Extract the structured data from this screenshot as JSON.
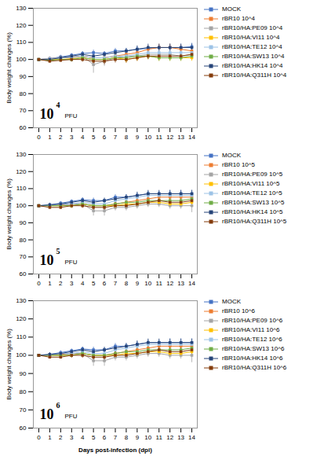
{
  "chart_data": [
    {
      "type": "line",
      "marker": "square",
      "legend": "right",
      "grid": false,
      "x": [
        0,
        1,
        2,
        3,
        4,
        5,
        6,
        7,
        8,
        9,
        10,
        11,
        12,
        13,
        14
      ],
      "xlim": [
        -0.5,
        14.5
      ],
      "xticks": [
        0,
        1,
        2,
        3,
        4,
        5,
        6,
        7,
        8,
        9,
        10,
        11,
        12,
        13,
        14
      ],
      "ylim": [
        60,
        130
      ],
      "yticks": [
        60,
        70,
        80,
        90,
        100,
        110,
        120,
        130
      ],
      "ylabel": "Body weight changes (%)",
      "annotation": {
        "base": "10",
        "exponent": "4",
        "unit": "PFU"
      },
      "series": [
        {
          "name": "MOCK",
          "color": "#4472C4",
          "values": [
            100,
            100.5,
            101.5,
            102.5,
            103.5,
            104,
            103.5,
            105,
            105,
            106,
            106.5,
            107,
            107,
            107,
            107.5
          ],
          "errors": [
            0,
            1,
            1,
            1,
            1,
            1.5,
            1,
            1.5,
            1.5,
            1.5,
            1.5,
            1.5,
            2,
            2,
            2
          ]
        },
        {
          "name": "rBR10 10^4",
          "color": "#ED7D31",
          "values": [
            100,
            100.5,
            101,
            101.5,
            102,
            101,
            101,
            102,
            103,
            104,
            106,
            107,
            107,
            106,
            105
          ],
          "errors": [
            0,
            1,
            1,
            1,
            1,
            1.5,
            2,
            2,
            2,
            2,
            2,
            2,
            2,
            2.5,
            2.5
          ]
        },
        {
          "name": "rBR10/HA:PE09 10^4",
          "color": "#A5A5A5",
          "values": [
            100,
            100,
            101,
            101,
            102,
            97,
            99,
            101,
            102,
            102,
            103,
            103,
            103,
            102,
            103
          ],
          "errors": [
            0,
            1,
            1,
            1.5,
            1.5,
            5,
            3,
            2,
            2,
            2,
            2,
            2,
            2,
            2,
            2
          ]
        },
        {
          "name": "rBR10/HA:VI11 10^4",
          "color": "#FFC000",
          "values": [
            100,
            100,
            100,
            100.5,
            101,
            100,
            100,
            101,
            100,
            101,
            102,
            101,
            101,
            101,
            101
          ],
          "errors": [
            0,
            0.5,
            0.5,
            1,
            1,
            1.5,
            1.5,
            2,
            2,
            2,
            2,
            2,
            2,
            2,
            2
          ]
        },
        {
          "name": "rBR10/HA:TE12 10^4",
          "color": "#9DC3E6",
          "values": [
            100,
            100.5,
            101,
            101.5,
            102,
            101,
            101,
            102,
            102,
            103,
            104,
            104,
            104,
            104,
            104
          ],
          "errors": [
            0,
            1,
            1,
            1,
            1,
            1.5,
            1.5,
            1.5,
            1.5,
            1.5,
            2,
            2,
            2,
            2,
            2
          ]
        },
        {
          "name": "rBR10/HA:SW13 10^4",
          "color": "#70AD47",
          "values": [
            100,
            99.5,
            100,
            100,
            101,
            100,
            100,
            101,
            101,
            102,
            102,
            101,
            101,
            101,
            102
          ],
          "errors": [
            0,
            1,
            1,
            1,
            1,
            1.5,
            1.5,
            1.5,
            1.5,
            2,
            2,
            2,
            2,
            2,
            2
          ]
        },
        {
          "name": "rBR10/HA:HK14 10^4",
          "color": "#264478",
          "values": [
            100,
            100,
            101,
            102,
            103,
            102,
            103,
            104,
            105,
            106,
            107,
            107,
            107,
            107,
            107
          ],
          "errors": [
            0,
            1,
            1,
            1,
            1.5,
            1.5,
            1.5,
            1.5,
            1.5,
            2,
            2,
            2,
            2,
            2,
            2
          ]
        },
        {
          "name": "rBR10/HA:Q311H 10^4",
          "color": "#843C0C",
          "values": [
            100,
            99,
            99.5,
            100,
            100,
            99,
            99,
            100,
            100,
            101,
            102,
            102,
            102,
            102,
            103
          ],
          "errors": [
            0,
            1,
            1,
            1.5,
            1.5,
            2,
            2,
            2,
            2,
            2,
            2,
            2,
            2,
            2,
            2
          ]
        }
      ]
    },
    {
      "type": "line",
      "marker": "square",
      "legend": "right",
      "grid": false,
      "x": [
        0,
        1,
        2,
        3,
        4,
        5,
        6,
        7,
        8,
        9,
        10,
        11,
        12,
        13,
        14
      ],
      "xlim": [
        -0.5,
        14.5
      ],
      "xticks": [
        0,
        1,
        2,
        3,
        4,
        5,
        6,
        7,
        8,
        9,
        10,
        11,
        12,
        13,
        14
      ],
      "ylim": [
        60,
        130
      ],
      "yticks": [
        60,
        70,
        80,
        90,
        100,
        110,
        120,
        130
      ],
      "ylabel": "Body weight changes (%)",
      "annotation": {
        "base": "10",
        "exponent": "5",
        "unit": "PFU"
      },
      "series": [
        {
          "name": "MOCK",
          "color": "#4472C4",
          "values": [
            100,
            100.5,
            101.5,
            102.5,
            103.5,
            103,
            103,
            105,
            105,
            106,
            107,
            107,
            107,
            107,
            107
          ],
          "errors": [
            0,
            1,
            1,
            1,
            1,
            1.5,
            1,
            1.5,
            1.5,
            1.5,
            1.5,
            1.5,
            2,
            2,
            2
          ]
        },
        {
          "name": "rBR10 10^5",
          "color": "#ED7D31",
          "values": [
            100,
            100,
            100.5,
            101,
            101,
            100,
            100,
            101,
            102,
            103,
            104,
            105,
            105,
            105,
            105
          ],
          "errors": [
            0,
            1,
            1,
            1,
            1,
            1.5,
            1.5,
            1.5,
            2,
            2,
            2,
            2,
            2,
            2,
            2
          ]
        },
        {
          "name": "rBR10/HA:PE09 10^5",
          "color": "#A5A5A5",
          "values": [
            100,
            100,
            100,
            101,
            101,
            97,
            97,
            99,
            99,
            100,
            101,
            101,
            100,
            100,
            100
          ],
          "errors": [
            0,
            1,
            1,
            1.5,
            1.5,
            3,
            3,
            2,
            2,
            2,
            2,
            2,
            2,
            2,
            4
          ]
        },
        {
          "name": "rBR10/HA:VI11 10^5",
          "color": "#FFC000",
          "values": [
            100,
            100,
            100,
            100,
            101,
            100,
            100,
            100,
            101,
            101,
            102,
            102,
            101,
            101,
            102
          ],
          "errors": [
            0,
            0.5,
            0.5,
            1,
            1,
            1.5,
            1.5,
            2,
            2,
            2,
            2,
            2,
            2,
            2,
            2
          ]
        },
        {
          "name": "rBR10/HA:TE12 10^5",
          "color": "#9DC3E6",
          "values": [
            100,
            100,
            101,
            101,
            102,
            101,
            101,
            103,
            104,
            105,
            106,
            106,
            106,
            106,
            106
          ],
          "errors": [
            0,
            1,
            1,
            1,
            1,
            1.5,
            1.5,
            1.5,
            1.5,
            1.5,
            2,
            2,
            2,
            2,
            2
          ]
        },
        {
          "name": "rBR10/HA:SW13 10^5",
          "color": "#70AD47",
          "values": [
            100,
            100,
            100,
            100,
            101,
            100,
            100,
            101,
            102,
            102,
            103,
            103,
            103,
            103,
            104
          ],
          "errors": [
            0,
            1,
            1,
            1,
            1,
            1.5,
            1.5,
            1.5,
            1.5,
            2,
            2,
            2,
            2,
            2,
            2
          ]
        },
        {
          "name": "rBR10/HA:HK14 10^5",
          "color": "#264478",
          "values": [
            100,
            100.5,
            101,
            102,
            103,
            102,
            103,
            104,
            105,
            106,
            107,
            107,
            107,
            107,
            107
          ],
          "errors": [
            0,
            1,
            1,
            1,
            1.5,
            1.5,
            1.5,
            1.5,
            1.5,
            2,
            2,
            2,
            2,
            2,
            2
          ]
        },
        {
          "name": "rBR10/HA:Q311H 10^5",
          "color": "#843C0C",
          "values": [
            100,
            99,
            99,
            100,
            100,
            99,
            99,
            100,
            100,
            101,
            102,
            103,
            102,
            102,
            103
          ],
          "errors": [
            0,
            1,
            1,
            1.5,
            1.5,
            2,
            2,
            2,
            2,
            2,
            2,
            2,
            2,
            2,
            2
          ]
        }
      ]
    },
    {
      "type": "line",
      "marker": "square",
      "legend": "right",
      "grid": false,
      "x": [
        0,
        1,
        2,
        3,
        4,
        5,
        6,
        7,
        8,
        9,
        10,
        11,
        12,
        13,
        14
      ],
      "xlim": [
        -0.5,
        14.5
      ],
      "xticks": [
        0,
        1,
        2,
        3,
        4,
        5,
        6,
        7,
        8,
        9,
        10,
        11,
        12,
        13,
        14
      ],
      "ylim": [
        60,
        130
      ],
      "yticks": [
        60,
        70,
        80,
        90,
        100,
        110,
        120,
        130
      ],
      "ylabel": "Body weight changes (%)",
      "xlabel": "Days post-infection (dpi)",
      "annotation": {
        "base": "10",
        "exponent": "6",
        "unit": "PFU"
      },
      "series": [
        {
          "name": "MOCK",
          "color": "#4472C4",
          "values": [
            100,
            100.5,
            101.5,
            102.5,
            103.5,
            103,
            103,
            105,
            105,
            106,
            107,
            107,
            107,
            107,
            107
          ],
          "errors": [
            0,
            1,
            1,
            1,
            1,
            1.5,
            1,
            1.5,
            1.5,
            1.5,
            1.5,
            1.5,
            2,
            2,
            2
          ]
        },
        {
          "name": "rBR10 10^6",
          "color": "#ED7D31",
          "values": [
            100,
            100,
            100.5,
            101,
            101,
            100,
            100,
            101,
            102,
            103,
            104,
            105,
            105,
            105,
            105
          ],
          "errors": [
            0,
            1,
            1,
            1,
            1,
            1.5,
            1.5,
            1.5,
            2,
            2,
            2,
            2,
            2,
            2,
            2
          ]
        },
        {
          "name": "rBR10/HA:PE09 10^6",
          "color": "#A5A5A5",
          "values": [
            100,
            100,
            100,
            101,
            101,
            97,
            97,
            99,
            99,
            100,
            101,
            101,
            100,
            100,
            100
          ],
          "errors": [
            0,
            1,
            1,
            1.5,
            1.5,
            3,
            3,
            2,
            2,
            2,
            2,
            2,
            2,
            2,
            4
          ]
        },
        {
          "name": "rBR10/HA:VI11 10^6",
          "color": "#FFC000",
          "values": [
            100,
            100,
            100,
            100,
            101,
            100,
            100,
            100,
            101,
            101,
            102,
            102,
            101,
            101,
            102
          ],
          "errors": [
            0,
            0.5,
            0.5,
            1,
            1,
            1.5,
            1.5,
            2,
            2,
            2,
            2,
            2,
            2,
            2,
            2
          ]
        },
        {
          "name": "rBR10/HA:TE12 10^6",
          "color": "#9DC3E6",
          "values": [
            100,
            100,
            101,
            101,
            102,
            101,
            101,
            103,
            104,
            105,
            106,
            106,
            106,
            106,
            106
          ],
          "errors": [
            0,
            1,
            1,
            1,
            1,
            1.5,
            1.5,
            1.5,
            1.5,
            1.5,
            2,
            2,
            2,
            2,
            2
          ]
        },
        {
          "name": "rBR10/HA:SW13 10^6",
          "color": "#70AD47",
          "values": [
            100,
            100,
            100,
            100,
            101,
            100,
            100,
            101,
            102,
            102,
            103,
            103,
            103,
            103,
            104
          ],
          "errors": [
            0,
            1,
            1,
            1,
            1,
            1.5,
            1.5,
            1.5,
            1.5,
            2,
            2,
            2,
            2,
            2,
            2
          ]
        },
        {
          "name": "rBR10/HA:HK14 10^6",
          "color": "#264478",
          "values": [
            100,
            100.5,
            101,
            102,
            103,
            102,
            103,
            104,
            105,
            106,
            107,
            107,
            107,
            107,
            107
          ],
          "errors": [
            0,
            1,
            1,
            1,
            1.5,
            1.5,
            1.5,
            1.5,
            1.5,
            2,
            2,
            2,
            2,
            2,
            2
          ]
        },
        {
          "name": "rBR10/HA:Q311H 10^6",
          "color": "#843C0C",
          "values": [
            100,
            99,
            99,
            100,
            100,
            99,
            99,
            100,
            100,
            101,
            102,
            103,
            102,
            102,
            103
          ],
          "errors": [
            0,
            1,
            1,
            1.5,
            1.5,
            2,
            2,
            2,
            2,
            2,
            2,
            2,
            2,
            2,
            2
          ]
        }
      ]
    }
  ]
}
